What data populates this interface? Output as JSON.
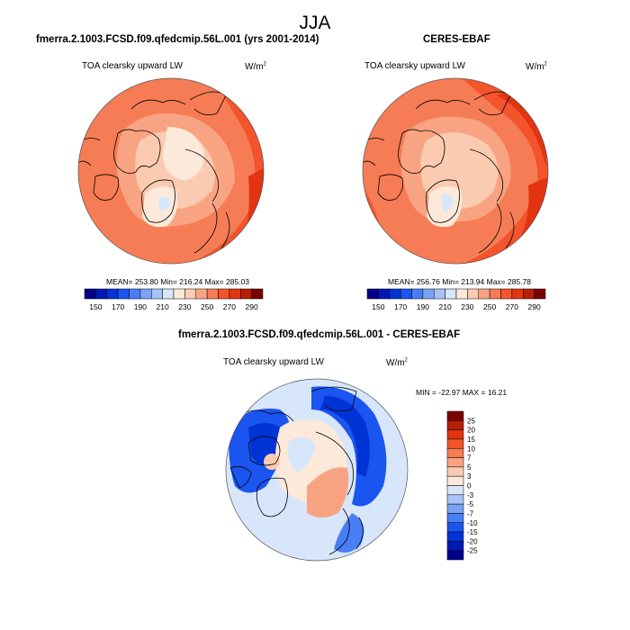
{
  "figure": {
    "title": "JJA"
  },
  "panels": [
    {
      "id": "model",
      "title": "fmerra.2.1003.FCSD.f09.qfedcmip.56L.001 (yrs 2001-2014)",
      "variable": "TOA clearsky upward LW",
      "units_base": "W/m",
      "units_exp": "2",
      "stats": "MEAN= 253.80  Min= 216.24  Max= 285.03",
      "mean": 253.8,
      "min": 216.24,
      "max": 285.03
    },
    {
      "id": "obs",
      "title": "CERES-EBAF",
      "variable": "TOA clearsky upward LW",
      "units_base": "W/m",
      "units_exp": "2",
      "stats": "MEAN= 256.76  Min= 213.94  Max= 285.78",
      "mean": 256.76,
      "min": 213.94,
      "max": 285.78
    },
    {
      "id": "diff",
      "title": "fmerra.2.1003.FCSD.f09.qfedcmip.56L.001 - CERES-EBAF",
      "variable": "TOA clearsky upward LW",
      "units_base": "W/m",
      "units_exp": "2",
      "stats": "MIN = -22.97 MAX =  16.21",
      "min": -22.97,
      "max": 16.21
    }
  ],
  "colorbars": {
    "absolute": {
      "orientation": "horizontal",
      "levels": [
        140,
        150,
        160,
        170,
        180,
        190,
        200,
        210,
        220,
        230,
        240,
        250,
        260,
        270,
        280,
        290,
        300
      ],
      "labels": [
        "150",
        "170",
        "190",
        "210",
        "230",
        "250",
        "270",
        "290"
      ],
      "colors": [
        "#00008b",
        "#0018b4",
        "#0033d6",
        "#1a55f0",
        "#4a7ef5",
        "#7aa2f5",
        "#a9c3f7",
        "#d7e6fb",
        "#fde9d9",
        "#fbcbb1",
        "#f8a482",
        "#f67c55",
        "#f3542c",
        "#e23410",
        "#b81e06",
        "#7c0000"
      ]
    },
    "difference": {
      "orientation": "vertical",
      "labels": [
        "25",
        "20",
        "15",
        "10",
        "7",
        "5",
        "3",
        "0",
        "-3",
        "-5",
        "-7",
        "-10",
        "-15",
        "-20",
        "-25"
      ],
      "colors_top_to_bottom": [
        "#7c0000",
        "#b81e06",
        "#e23410",
        "#f3542c",
        "#f67c55",
        "#f8a482",
        "#fbcbb1",
        "#fde9d9",
        "#d7e6fb",
        "#a9c3f7",
        "#7aa2f5",
        "#4a7ef5",
        "#1a55f0",
        "#0033d6",
        "#0018b4",
        "#00008b"
      ]
    }
  },
  "chart_data": [
    {
      "type": "heatmap",
      "title": "fmerra.2.1003.FCSD.f09.qfedcmip.56L.001 (yrs 2001-2014)",
      "subtitle": "TOA clearsky upward LW",
      "projection": "north polar stereographic",
      "units": "W/m2",
      "season": "JJA",
      "mean": 253.8,
      "min": 216.24,
      "max": 285.03,
      "colorbar_ticks": [
        150,
        170,
        190,
        210,
        230,
        250,
        270,
        290
      ]
    },
    {
      "type": "heatmap",
      "title": "CERES-EBAF",
      "subtitle": "TOA clearsky upward LW",
      "projection": "north polar stereographic",
      "units": "W/m2",
      "season": "JJA",
      "mean": 256.76,
      "min": 213.94,
      "max": 285.78,
      "colorbar_ticks": [
        150,
        170,
        190,
        210,
        230,
        250,
        270,
        290
      ]
    },
    {
      "type": "heatmap",
      "title": "fmerra.2.1003.FCSD.f09.qfedcmip.56L.001 - CERES-EBAF",
      "subtitle": "TOA clearsky upward LW",
      "projection": "north polar stereographic",
      "units": "W/m2",
      "season": "JJA",
      "min": -22.97,
      "max": 16.21,
      "colorbar_ticks": [
        25,
        20,
        15,
        10,
        7,
        5,
        3,
        0,
        -3,
        -5,
        -7,
        -10,
        -15,
        -20,
        -25
      ]
    }
  ]
}
